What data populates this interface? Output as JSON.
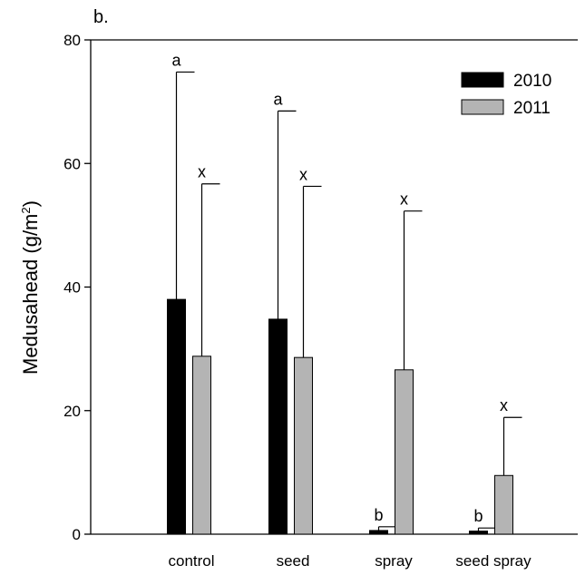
{
  "chart_data": {
    "type": "bar",
    "panel_label": "b.",
    "categories": [
      "control",
      "seed",
      "spray",
      "seed spray"
    ],
    "series": [
      {
        "name": "2010",
        "color": "#000000",
        "values": [
          38,
          34.8,
          0.6,
          0.5
        ],
        "error_upper": [
          74.8,
          68.5,
          1.2,
          1.0
        ],
        "letters": [
          "a",
          "a",
          "b",
          "b"
        ]
      },
      {
        "name": "2011",
        "color": "#b4b4b4",
        "values": [
          28.8,
          28.6,
          26.6,
          9.5
        ],
        "error_upper": [
          56.7,
          56.3,
          52.3,
          18.9
        ],
        "letters": [
          "x",
          "x",
          "x",
          "x"
        ]
      }
    ],
    "ylabel_main": "Medusahead (g/m",
    "ylabel_sup": "2",
    "ylabel_end": ")",
    "ylim": [
      0,
      80
    ],
    "yticks": [
      "0",
      "20",
      "40",
      "60",
      "80"
    ],
    "legend_position": "top-right",
    "grid": false
  }
}
